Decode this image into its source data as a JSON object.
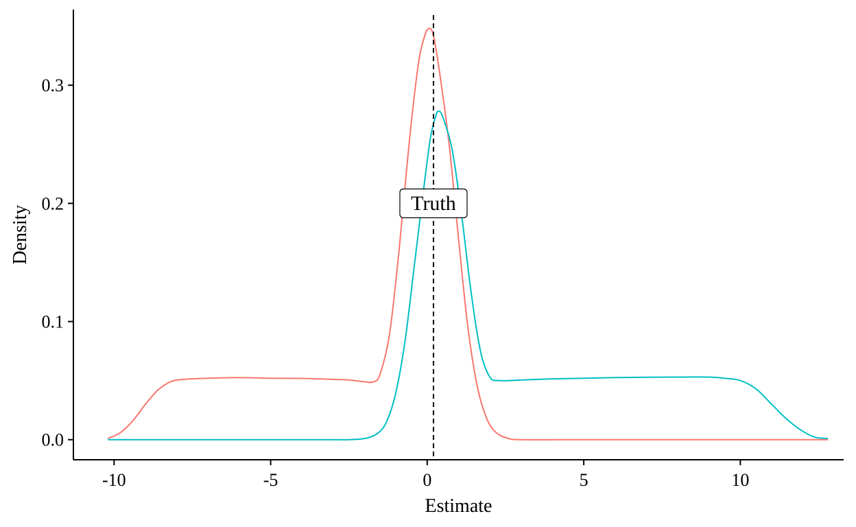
{
  "chart_data": {
    "type": "line",
    "title": "",
    "xlabel": "Estimate",
    "ylabel": "Density",
    "xlim": [
      -11.3,
      13.3
    ],
    "ylim": [
      -0.017,
      0.364
    ],
    "x_ticks": [
      -10,
      -5,
      0,
      5,
      10
    ],
    "x_tick_labels": [
      "-10",
      "-5",
      "0",
      "5",
      "10"
    ],
    "y_ticks": [
      0.0,
      0.1,
      0.2,
      0.3
    ],
    "y_tick_labels": [
      "0.0",
      "0.1",
      "0.2",
      "0.3"
    ],
    "grid": false,
    "legend": "none",
    "series": [
      {
        "color": "#F8766D",
        "points": [
          [
            -10.2,
            0.001
          ],
          [
            -9.8,
            0.006
          ],
          [
            -9.4,
            0.016
          ],
          [
            -9.0,
            0.03
          ],
          [
            -8.6,
            0.042
          ],
          [
            -8.2,
            0.049
          ],
          [
            -7.8,
            0.051
          ],
          [
            -7.0,
            0.052
          ],
          [
            -6.0,
            0.0525
          ],
          [
            -5.0,
            0.052
          ],
          [
            -4.0,
            0.0518
          ],
          [
            -3.0,
            0.051
          ],
          [
            -2.5,
            0.0505
          ],
          [
            -2.0,
            0.049
          ],
          [
            -1.7,
            0.049
          ],
          [
            -1.5,
            0.056
          ],
          [
            -1.2,
            0.09
          ],
          [
            -0.9,
            0.16
          ],
          [
            -0.6,
            0.245
          ],
          [
            -0.3,
            0.315
          ],
          [
            -0.1,
            0.34
          ],
          [
            0.05,
            0.348
          ],
          [
            0.2,
            0.342
          ],
          [
            0.4,
            0.31
          ],
          [
            0.7,
            0.25
          ],
          [
            1.0,
            0.17
          ],
          [
            1.3,
            0.095
          ],
          [
            1.6,
            0.045
          ],
          [
            1.9,
            0.018
          ],
          [
            2.2,
            0.006
          ],
          [
            2.6,
            0.001
          ],
          [
            3.0,
            0.0
          ],
          [
            5.0,
            0.0
          ],
          [
            8.0,
            0.0
          ],
          [
            12.8,
            0.0
          ]
        ]
      },
      {
        "color": "#00BFC4",
        "points": [
          [
            -10.2,
            0.0
          ],
          [
            -6.0,
            0.0
          ],
          [
            -3.0,
            0.0
          ],
          [
            -2.5,
            0.0
          ],
          [
            -2.0,
            0.001
          ],
          [
            -1.6,
            0.005
          ],
          [
            -1.3,
            0.015
          ],
          [
            -1.0,
            0.04
          ],
          [
            -0.7,
            0.085
          ],
          [
            -0.4,
            0.15
          ],
          [
            -0.1,
            0.215
          ],
          [
            0.1,
            0.255
          ],
          [
            0.25,
            0.272
          ],
          [
            0.35,
            0.278
          ],
          [
            0.5,
            0.273
          ],
          [
            0.8,
            0.245
          ],
          [
            1.1,
            0.19
          ],
          [
            1.4,
            0.125
          ],
          [
            1.7,
            0.075
          ],
          [
            2.0,
            0.053
          ],
          [
            2.3,
            0.05
          ],
          [
            3.0,
            0.0505
          ],
          [
            4.0,
            0.0515
          ],
          [
            5.0,
            0.052
          ],
          [
            6.0,
            0.0525
          ],
          [
            7.0,
            0.0528
          ],
          [
            8.0,
            0.053
          ],
          [
            9.0,
            0.053
          ],
          [
            9.5,
            0.052
          ],
          [
            10.0,
            0.05
          ],
          [
            10.5,
            0.043
          ],
          [
            11.0,
            0.03
          ],
          [
            11.5,
            0.017
          ],
          [
            12.0,
            0.007
          ],
          [
            12.4,
            0.002
          ],
          [
            12.8,
            0.001
          ]
        ]
      }
    ],
    "reference_line": {
      "x": 0.2,
      "style": "dashed",
      "color": "#000000"
    },
    "annotation": {
      "text": "Truth",
      "x": 0.2,
      "y": 0.2
    }
  }
}
